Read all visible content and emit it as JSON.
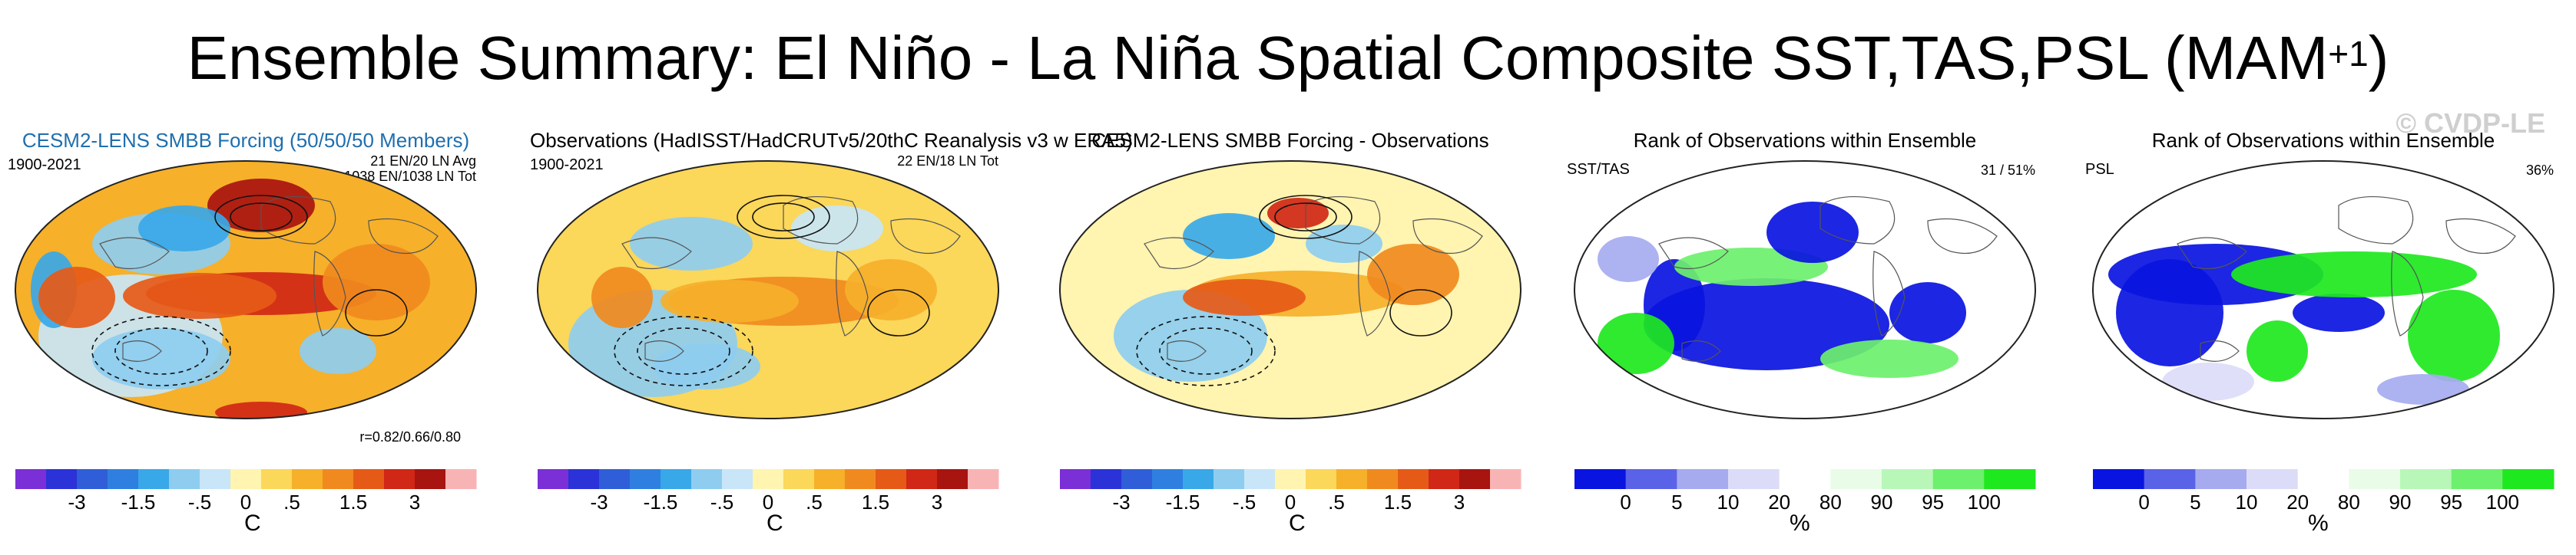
{
  "title_main": "Ensemble Summary: El Niño - La Niña Spatial Composite SST,TAS,PSL (MAM",
  "title_sup": "+1",
  "title_end": ")",
  "watermark": "© CVDP-LE",
  "panels": [
    {
      "title": "CESM2-LENS SMBB Forcing (50/50/50 Members)",
      "left_label": "1900-2021",
      "right_label_1": "21 EN/20 LN Avg",
      "right_label_2": "1038 EN/1038 LN Tot",
      "corr_label": "r=0.82/0.66/0.80",
      "unit": "C"
    },
    {
      "title": "Observations (HadISST/HadCRUTv5/20thC Reanalysis v3 w ERA5)",
      "left_label": "1900-2021",
      "right_label_1": "22 EN/18 LN Tot",
      "unit": "C"
    },
    {
      "title": "CESM2-LENS SMBB Forcing - Observations",
      "unit": "C"
    },
    {
      "title": "Rank of Observations within Ensemble",
      "left_label": "SST/TAS",
      "right_label_1": "31 /  51%",
      "unit": "%"
    },
    {
      "title": "Rank of Observations within Ensemble",
      "left_label": "PSL",
      "right_label_1": "36%",
      "unit": "%"
    }
  ],
  "chart_data": [
    {
      "type": "heatmap",
      "title": "CESM2-LENS SMBB Forcing (50/50/50 Members)",
      "colorbar_ticks": [
        "-3",
        "-1.5",
        "-.5",
        "0",
        ".5",
        "1.5",
        "3"
      ],
      "colorbar_unit": "C",
      "grid": false
    },
    {
      "type": "heatmap",
      "title": "Observations (HadISST/HadCRUTv5/20thC Reanalysis v3 w ERA5)",
      "colorbar_ticks": [
        "-3",
        "-1.5",
        "-.5",
        "0",
        ".5",
        "1.5",
        "3"
      ],
      "colorbar_unit": "C",
      "grid": false
    },
    {
      "type": "heatmap",
      "title": "CESM2-LENS SMBB Forcing - Observations",
      "colorbar_ticks": [
        "-3",
        "-1.5",
        "-.5",
        "0",
        ".5",
        "1.5",
        "3"
      ],
      "colorbar_unit": "C",
      "grid": false
    },
    {
      "type": "heatmap",
      "title": "Rank of Observations within Ensemble",
      "colorbar_ticks": [
        "0",
        "5",
        "10",
        "20",
        "80",
        "90",
        "95",
        "100"
      ],
      "colorbar_unit": "%",
      "grid": false
    },
    {
      "type": "heatmap",
      "title": "Rank of Observations within Ensemble",
      "colorbar_ticks": [
        "0",
        "5",
        "10",
        "20",
        "80",
        "90",
        "95",
        "100"
      ],
      "colorbar_unit": "%",
      "grid": false
    }
  ],
  "colors": {
    "temp_scale": [
      "#7b2fd6",
      "#2a32d8",
      "#2f5ed8",
      "#2f7fe0",
      "#38a8e8",
      "#8ecdf0",
      "#c8e6f7",
      "#fff4b0",
      "#fbd75a",
      "#f6b02a",
      "#f08a1e",
      "#e65a17",
      "#d02716",
      "#a81410",
      "#f8b4b4"
    ],
    "rank_scale": [
      "#0a14e0",
      "#5a62e8",
      "#a6abf0",
      "#dcdcf8",
      "#ffffff",
      "#e8fce8",
      "#b8f7b8",
      "#6df06d",
      "#1ee81e"
    ]
  }
}
